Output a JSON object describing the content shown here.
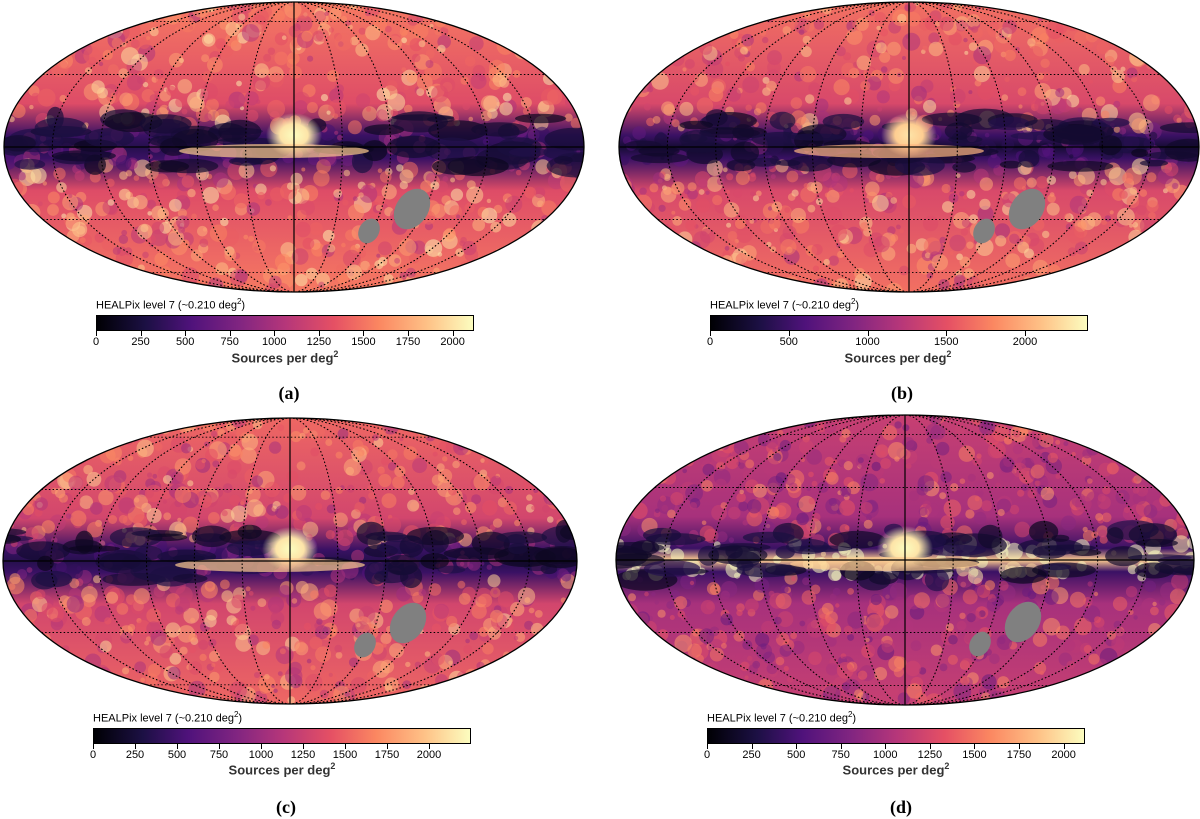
{
  "chart_data": [
    {
      "type": "heatmap",
      "panel": "(a)",
      "projection": "mollweide",
      "grid": true,
      "colormap": "magma",
      "caption_prefix": "HEALPix level 7 (~0.210 deg",
      "caption_sup": "2",
      "caption_suffix": ")",
      "colorbar_label": "Sources per deg",
      "colorbar_label_sup": "2",
      "colorbar_range": [
        0,
        2120
      ],
      "colorbar_ticks": [
        0,
        250,
        500,
        750,
        1000,
        1250,
        1500,
        1750,
        2000
      ],
      "colorbar_tick_labels": [
        "0",
        "250",
        "500",
        "750",
        "1000",
        "1250",
        "1500",
        "1750",
        "2000"
      ],
      "disk_level": 0.72,
      "plane_level": 0.15,
      "bulge_level": 1.0,
      "masked_regions": [
        "LMC",
        "SMC"
      ],
      "masked_color": "#808080",
      "seed": 11
    },
    {
      "type": "heatmap",
      "panel": "(b)",
      "projection": "mollweide",
      "grid": true,
      "colormap": "magma",
      "caption_prefix": "HEALPix level 7 (~0.210 deg",
      "caption_sup": "2",
      "caption_suffix": ")",
      "colorbar_label": "Sources per deg",
      "colorbar_label_sup": "2",
      "colorbar_range": [
        0,
        2400
      ],
      "colorbar_ticks": [
        0,
        500,
        1000,
        1500,
        2000
      ],
      "colorbar_tick_labels": [
        "0",
        "500",
        "1000",
        "1500",
        "2000"
      ],
      "disk_level": 0.7,
      "plane_level": 0.1,
      "bulge_level": 0.95,
      "masked_regions": [
        "LMC",
        "SMC"
      ],
      "masked_color": "#808080",
      "seed": 23
    },
    {
      "type": "heatmap",
      "panel": "(c)",
      "projection": "mollweide",
      "grid": true,
      "colormap": "magma",
      "caption_prefix": "HEALPix level 7 (~0.210 deg",
      "caption_sup": "2",
      "caption_suffix": ")",
      "colorbar_label": "Sources per deg",
      "colorbar_label_sup": "2",
      "colorbar_range": [
        0,
        2250
      ],
      "colorbar_ticks": [
        0,
        250,
        500,
        750,
        1000,
        1250,
        1500,
        1750,
        2000
      ],
      "colorbar_tick_labels": [
        "0",
        "250",
        "500",
        "750",
        "1000",
        "1250",
        "1500",
        "1750",
        "2000"
      ],
      "disk_level": 0.68,
      "plane_level": 0.15,
      "bulge_level": 1.0,
      "masked_regions": [
        "LMC",
        "SMC"
      ],
      "masked_color": "#808080",
      "seed": 37
    },
    {
      "type": "heatmap",
      "panel": "(d)",
      "projection": "mollweide",
      "grid": true,
      "colormap": "magma",
      "caption_prefix": "HEALPix level 7 (~0.210 deg",
      "caption_sup": "2",
      "caption_suffix": ")",
      "colorbar_label": "Sources per deg",
      "colorbar_label_sup": "2",
      "colorbar_range": [
        0,
        2120
      ],
      "colorbar_ticks": [
        0,
        250,
        500,
        750,
        1000,
        1250,
        1500,
        1750,
        2000
      ],
      "colorbar_tick_labels": [
        "0",
        "250",
        "500",
        "750",
        "1000",
        "1250",
        "1500",
        "1750",
        "2000"
      ],
      "disk_level": 0.55,
      "plane_level": 0.9,
      "bulge_level": 1.0,
      "masked_regions": [
        "LMC",
        "SMC"
      ],
      "masked_color": "#808080",
      "seed": 53
    }
  ]
}
